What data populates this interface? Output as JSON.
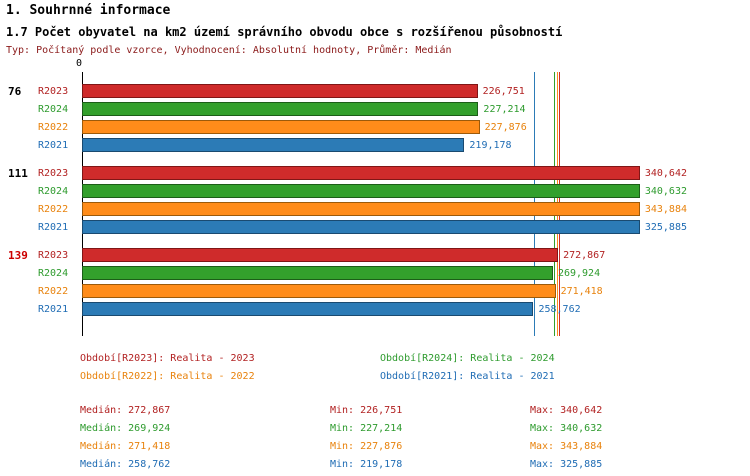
{
  "header": {
    "title": "1. Souhrnné informace",
    "subtitle": "1.7 Počet obyvatel na km2 území správního obvodu obce s rozšířenou působností",
    "meta": "Typ: Počítaný podle vzorce, Vyhodnocení: Absolutní hodnoty, Průměr: Medián",
    "meta_color": "#8b1a1a"
  },
  "series": [
    {
      "id": "R2023",
      "label": "R2023",
      "color": "#cf2b2b",
      "border": "#801616",
      "text": "#b22222"
    },
    {
      "id": "R2024",
      "label": "R2024",
      "color": "#33a02c",
      "border": "#1c5e18",
      "text": "#2e9b2e"
    },
    {
      "id": "R2022",
      "label": "R2022",
      "color": "#ff8c1a",
      "border": "#9c5a0a",
      "text": "#e8820c"
    },
    {
      "id": "R2021",
      "label": "R2021",
      "color": "#2c7bb6",
      "border": "#1a4a70",
      "text": "#1f6cb4"
    }
  ],
  "chart_data": {
    "type": "bar",
    "orientation": "horizontal",
    "title": "1.7 Počet obyvatel na km2 území správního obvodu obce s rozšířenou působností",
    "xlabel": "",
    "ylabel": "",
    "x_origin_label": "0",
    "xmax": 346750,
    "grid": false,
    "series_order": [
      "R2023",
      "R2024",
      "R2022",
      "R2021"
    ],
    "groups": [
      {
        "label": "76",
        "label_color": "#000000",
        "values": {
          "R2023": 226751,
          "R2024": 227214,
          "R2022": 227876,
          "R2021": 219178
        }
      },
      {
        "label": "111",
        "label_color": "#000000",
        "values": {
          "R2023": 340642,
          "R2024": 340632,
          "R2022": 343884,
          "R2021": 325885
        }
      },
      {
        "label": "139",
        "label_color": "#cc0000",
        "values": {
          "R2023": 272867,
          "R2024": 269924,
          "R2022": 271418,
          "R2021": 258762
        }
      }
    ],
    "median_lines": {
      "R2023": 272867,
      "R2024": 269924,
      "R2022": 271418,
      "R2021": 258762
    }
  },
  "legend": {
    "items": [
      {
        "series": "R2023",
        "text": "Období[R2023]: Realita - 2023"
      },
      {
        "series": "R2024",
        "text": "Období[R2024]: Realita - 2024"
      },
      {
        "series": "R2022",
        "text": "Období[R2022]: Realita - 2022"
      },
      {
        "series": "R2021",
        "text": "Období[R2021]: Realita - 2021"
      }
    ]
  },
  "stats": {
    "labels": {
      "median": "Medián",
      "min": "Min",
      "max": "Max"
    },
    "rows": [
      {
        "series": "R2023",
        "median": 272867,
        "min": 226751,
        "max": 340642
      },
      {
        "series": "R2024",
        "median": 269924,
        "min": 227214,
        "max": 340632
      },
      {
        "series": "R2022",
        "median": 271418,
        "min": 227876,
        "max": 343884
      },
      {
        "series": "R2021",
        "median": 258762,
        "min": 219178,
        "max": 325885
      }
    ]
  }
}
